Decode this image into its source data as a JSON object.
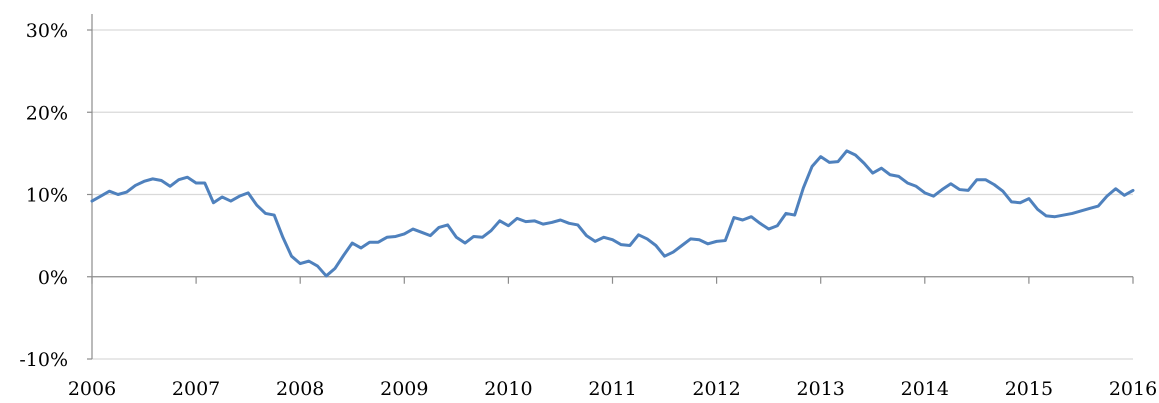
{
  "chart_data": {
    "type": "line",
    "title": "",
    "xlabel": "",
    "ylabel": "",
    "x_tick_labels": [
      "2006",
      "2007",
      "2008",
      "2009",
      "2010",
      "2011",
      "2012",
      "2013",
      "2014",
      "2015",
      "2016"
    ],
    "y_tick_labels": [
      "-10%",
      "0%",
      "10%",
      "20%",
      "30%"
    ],
    "y_ticks": [
      -10,
      0,
      10,
      20,
      30
    ],
    "xlim": [
      2006,
      2016
    ],
    "ylim": [
      -10,
      30
    ],
    "grid": "horizontal",
    "legend": "none",
    "colors": {
      "line": "#4f81bd",
      "grid": "#d9d9d9",
      "axis": "#8c8c8c",
      "text": "#000000"
    },
    "series": [
      {
        "x": [
          "2006-01",
          "2006-02",
          "2006-03",
          "2006-04",
          "2006-05",
          "2006-06",
          "2006-07",
          "2006-08",
          "2006-09",
          "2006-10",
          "2006-11",
          "2006-12",
          "2007-01",
          "2007-02",
          "2007-03",
          "2007-04",
          "2007-05",
          "2007-06",
          "2007-07",
          "2007-08",
          "2007-09",
          "2007-10",
          "2007-11",
          "2007-12",
          "2008-01",
          "2008-02",
          "2008-03",
          "2008-04",
          "2008-05",
          "2008-06",
          "2008-07",
          "2008-08",
          "2008-09",
          "2008-10",
          "2008-11",
          "2008-12",
          "2009-01",
          "2009-02",
          "2009-03",
          "2009-04",
          "2009-05",
          "2009-06",
          "2009-07",
          "2009-08",
          "2009-09",
          "2009-10",
          "2009-11",
          "2009-12",
          "2010-01",
          "2010-02",
          "2010-03",
          "2010-04",
          "2010-05",
          "2010-06",
          "2010-07",
          "2010-08",
          "2010-09",
          "2010-10",
          "2010-11",
          "2010-12",
          "2011-01",
          "2011-02",
          "2011-03",
          "2011-04",
          "2011-05",
          "2011-06",
          "2011-07",
          "2011-08",
          "2011-09",
          "2011-10",
          "2011-11",
          "2011-12",
          "2012-01",
          "2012-02",
          "2012-03",
          "2012-04",
          "2012-05",
          "2012-06",
          "2012-07",
          "2012-08",
          "2012-09",
          "2012-10",
          "2012-11",
          "2012-12",
          "2013-01",
          "2013-02",
          "2013-03",
          "2013-04",
          "2013-05",
          "2013-06",
          "2013-07",
          "2013-08",
          "2013-09",
          "2013-10",
          "2013-11",
          "2013-12",
          "2014-01",
          "2014-02",
          "2014-03",
          "2014-04",
          "2014-05",
          "2014-06",
          "2014-07",
          "2014-08",
          "2014-09",
          "2014-10",
          "2014-11",
          "2014-12",
          "2015-01",
          "2015-02",
          "2015-03",
          "2015-04",
          "2015-05",
          "2015-06",
          "2015-07",
          "2015-08",
          "2015-09",
          "2015-10",
          "2015-11",
          "2015-12",
          "2016-01"
        ],
        "values": [
          9.2,
          9.8,
          10.4,
          10.0,
          10.3,
          11.1,
          11.6,
          11.9,
          11.7,
          11.0,
          11.8,
          12.1,
          11.4,
          11.4,
          9.0,
          9.7,
          9.2,
          9.8,
          10.2,
          8.7,
          7.7,
          7.5,
          4.8,
          2.5,
          1.6,
          1.9,
          1.3,
          0.1,
          1.0,
          2.6,
          4.1,
          3.5,
          4.2,
          4.2,
          4.8,
          4.9,
          5.2,
          5.8,
          5.4,
          5.0,
          6.0,
          6.3,
          4.8,
          4.1,
          4.9,
          4.8,
          5.6,
          6.8,
          6.2,
          7.1,
          6.7,
          6.8,
          6.4,
          6.6,
          6.9,
          6.5,
          6.3,
          5.0,
          4.3,
          4.8,
          4.5,
          3.9,
          3.8,
          5.1,
          4.6,
          3.8,
          2.5,
          3.0,
          3.8,
          4.6,
          4.5,
          4.0,
          4.3,
          4.4,
          7.2,
          6.9,
          7.3,
          6.5,
          5.8,
          6.2,
          7.7,
          7.5,
          10.8,
          13.4,
          14.6,
          13.9,
          14.0,
          15.3,
          14.8,
          13.8,
          12.6,
          13.2,
          12.4,
          12.2,
          11.4,
          11.0,
          10.2,
          9.8,
          10.6,
          11.3,
          10.6,
          10.5,
          11.8,
          11.8,
          11.2,
          10.4,
          9.1,
          9.0,
          9.5,
          8.2,
          7.4,
          7.3,
          7.5,
          7.7,
          8.0,
          8.3,
          8.6,
          9.8,
          10.7,
          9.9,
          10.5
        ]
      }
    ]
  }
}
